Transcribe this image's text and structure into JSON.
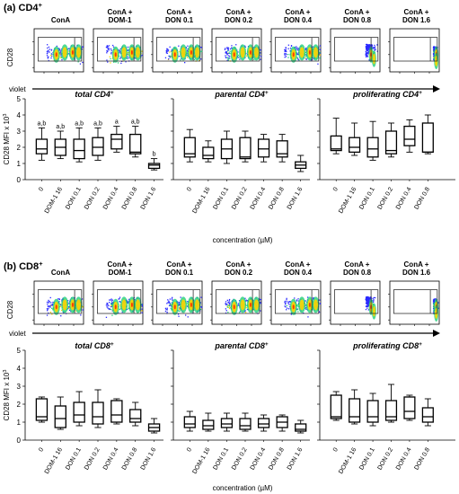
{
  "panels": [
    {
      "id": "a",
      "heading_prefix": "(a) CD4",
      "heading_sup": "+",
      "flow": {
        "y_label": "CD28",
        "x_label": "violet",
        "plots": [
          {
            "label": [
              "ConA"
            ],
            "events": "full"
          },
          {
            "label": [
              "ConA +",
              "DOM-1"
            ],
            "events": "full"
          },
          {
            "label": [
              "ConA +",
              "DON 0.1"
            ],
            "events": "full"
          },
          {
            "label": [
              "ConA +",
              "DON 0.2"
            ],
            "events": "full"
          },
          {
            "label": [
              "ConA +",
              "DON 0.4"
            ],
            "events": "full"
          },
          {
            "label": [
              "ConA +",
              "DON 0.8"
            ],
            "events": "right"
          },
          {
            "label": [
              "ConA +",
              "DON 1.6"
            ],
            "events": "edge"
          }
        ]
      },
      "box_charts": [
        {
          "title": "total CD4",
          "title_sup": "+",
          "type": "box",
          "categories": [
            "0",
            "DOM-1 16",
            "DON 0.1",
            "DON 0.2",
            "DON 0.4",
            "DON 0.8",
            "DON 1.6"
          ],
          "boxes": [
            {
              "min": 1.2,
              "q1": 1.6,
              "median": 1.9,
              "q3": 2.5,
              "max": 3.2,
              "sig": "a,b"
            },
            {
              "min": 1.3,
              "q1": 1.5,
              "median": 2.0,
              "q3": 2.5,
              "max": 3.0,
              "sig": "a,b"
            },
            {
              "min": 1.1,
              "q1": 1.3,
              "median": 1.8,
              "q3": 2.5,
              "max": 3.2,
              "sig": "a,b"
            },
            {
              "min": 1.2,
              "q1": 1.5,
              "median": 2.0,
              "q3": 2.6,
              "max": 3.2,
              "sig": "a,b"
            },
            {
              "min": 1.7,
              "q1": 1.9,
              "median": 2.5,
              "q3": 2.8,
              "max": 3.3,
              "sig": "a"
            },
            {
              "min": 1.4,
              "q1": 1.6,
              "median": 1.7,
              "q3": 2.8,
              "max": 3.3,
              "sig": "a,b"
            },
            {
              "min": 0.6,
              "q1": 0.7,
              "median": 0.9,
              "q3": 1.0,
              "max": 1.3,
              "sig": "b"
            }
          ]
        },
        {
          "title": "parental CD4",
          "title_sup": "+",
          "type": "box",
          "categories": [
            "0",
            "DOM-1 16",
            "DON 0.1",
            "DON 0.2",
            "DON 0.4",
            "DON 0.8",
            "DON 1.6"
          ],
          "boxes": [
            {
              "min": 1.1,
              "q1": 1.4,
              "median": 1.6,
              "q3": 2.6,
              "max": 3.1
            },
            {
              "min": 1.1,
              "q1": 1.3,
              "median": 1.5,
              "q3": 2.0,
              "max": 2.4
            },
            {
              "min": 1.0,
              "q1": 1.3,
              "median": 1.9,
              "q3": 2.5,
              "max": 3.0
            },
            {
              "min": 1.1,
              "q1": 1.3,
              "median": 1.4,
              "q3": 2.6,
              "max": 3.0
            },
            {
              "min": 1.1,
              "q1": 1.4,
              "median": 1.9,
              "q3": 2.5,
              "max": 2.8
            },
            {
              "min": 1.1,
              "q1": 1.4,
              "median": 1.6,
              "q3": 2.4,
              "max": 2.8
            },
            {
              "min": 0.5,
              "q1": 0.7,
              "median": 0.9,
              "q3": 1.1,
              "max": 1.5
            }
          ]
        },
        {
          "title": "proliferating CD4",
          "title_sup": "+",
          "type": "box",
          "categories": [
            "0",
            "DOM-1 16",
            "DON 0.1",
            "DON 0.2",
            "DON 0.4",
            "DON 0.8"
          ],
          "boxes": [
            {
              "min": 1.6,
              "q1": 1.8,
              "median": 1.9,
              "q3": 2.7,
              "max": 3.8
            },
            {
              "min": 1.5,
              "q1": 1.7,
              "median": 2.0,
              "q3": 2.6,
              "max": 3.5
            },
            {
              "min": 1.2,
              "q1": 1.4,
              "median": 1.9,
              "q3": 2.6,
              "max": 3.6
            },
            {
              "min": 1.4,
              "q1": 1.6,
              "median": 1.8,
              "q3": 3.0,
              "max": 3.5
            },
            {
              "min": 1.7,
              "q1": 2.1,
              "median": 2.5,
              "q3": 3.3,
              "max": 3.7
            },
            {
              "min": 1.6,
              "q1": 1.7,
              "median": 1.7,
              "q3": 3.5,
              "max": 4.0
            }
          ]
        }
      ]
    },
    {
      "id": "b",
      "heading_prefix": "(b) CD8",
      "heading_sup": "+",
      "flow": {
        "y_label": "CD28",
        "x_label": "violet",
        "plots": [
          {
            "label": [
              "ConA"
            ],
            "events": "full"
          },
          {
            "label": [
              "ConA +",
              "DOM-1"
            ],
            "events": "full"
          },
          {
            "label": [
              "ConA +",
              "DON 0.1"
            ],
            "events": "full"
          },
          {
            "label": [
              "ConA +",
              "DON 0.2"
            ],
            "events": "full"
          },
          {
            "label": [
              "ConA +",
              "DON 0.4"
            ],
            "events": "full"
          },
          {
            "label": [
              "ConA +",
              "DON 0.8"
            ],
            "events": "right"
          },
          {
            "label": [
              "ConA +",
              "DON 1.6"
            ],
            "events": "edge"
          }
        ]
      },
      "box_charts": [
        {
          "title": "total CD8",
          "title_sup": "+",
          "type": "box",
          "categories": [
            "0",
            "DOM-1 16",
            "DON 0.1",
            "DON 0.2",
            "DON 0.4",
            "DON 0.8",
            "DON 1.6"
          ],
          "boxes": [
            {
              "min": 1.0,
              "q1": 1.1,
              "median": 1.3,
              "q3": 2.3,
              "max": 2.4
            },
            {
              "min": 0.6,
              "q1": 0.7,
              "median": 1.2,
              "q3": 1.9,
              "max": 2.4
            },
            {
              "min": 0.8,
              "q1": 1.0,
              "median": 1.4,
              "q3": 2.1,
              "max": 2.7
            },
            {
              "min": 0.7,
              "q1": 0.9,
              "median": 1.3,
              "q3": 2.1,
              "max": 2.8
            },
            {
              "min": 0.9,
              "q1": 1.0,
              "median": 1.4,
              "q3": 2.2,
              "max": 2.3
            },
            {
              "min": 0.8,
              "q1": 1.0,
              "median": 1.2,
              "q3": 1.7,
              "max": 2.1
            },
            {
              "min": 0.4,
              "q1": 0.5,
              "median": 0.7,
              "q3": 0.9,
              "max": 1.2
            }
          ]
        },
        {
          "title": "parental CD8",
          "title_sup": "+",
          "type": "box",
          "categories": [
            "0",
            "DOM-1 16",
            "DON 0.1",
            "DON 0.2",
            "DON 0.4",
            "DON 0.8",
            "DON 1.6"
          ],
          "boxes": [
            {
              "min": 0.5,
              "q1": 0.7,
              "median": 0.9,
              "q3": 1.3,
              "max": 1.6
            },
            {
              "min": 0.5,
              "q1": 0.6,
              "median": 0.8,
              "q3": 1.1,
              "max": 1.5
            },
            {
              "min": 0.5,
              "q1": 0.7,
              "median": 0.9,
              "q3": 1.2,
              "max": 1.5
            },
            {
              "min": 0.5,
              "q1": 0.6,
              "median": 0.8,
              "q3": 1.2,
              "max": 1.5
            },
            {
              "min": 0.5,
              "q1": 0.7,
              "median": 0.9,
              "q3": 1.2,
              "max": 1.4
            },
            {
              "min": 0.5,
              "q1": 0.7,
              "median": 1.0,
              "q3": 1.3,
              "max": 1.4
            },
            {
              "min": 0.4,
              "q1": 0.5,
              "median": 0.6,
              "q3": 0.9,
              "max": 1.1
            }
          ]
        },
        {
          "title": "proliferating CD8",
          "title_sup": "+",
          "type": "box",
          "categories": [
            "0",
            "DOM-1 16",
            "DON 0.1",
            "DON 0.2",
            "DON 0.4",
            "DON 0.8"
          ],
          "boxes": [
            {
              "min": 1.1,
              "q1": 1.2,
              "median": 1.3,
              "q3": 2.5,
              "max": 2.7
            },
            {
              "min": 0.9,
              "q1": 1.0,
              "median": 1.3,
              "q3": 2.3,
              "max": 2.8
            },
            {
              "min": 0.8,
              "q1": 1.0,
              "median": 1.3,
              "q3": 2.2,
              "max": 2.6
            },
            {
              "min": 1.0,
              "q1": 1.1,
              "median": 1.3,
              "q3": 2.2,
              "max": 3.1
            },
            {
              "min": 1.1,
              "q1": 1.2,
              "median": 1.6,
              "q3": 2.4,
              "max": 2.5
            },
            {
              "min": 0.8,
              "q1": 1.0,
              "median": 1.3,
              "q3": 1.8,
              "max": 2.3
            }
          ]
        }
      ]
    }
  ],
  "y_axis": {
    "label_prefix": "CD28 MFI x 10",
    "label_exp": "3",
    "ticks": [
      "0",
      "1",
      "2",
      "3",
      "4",
      "5"
    ],
    "ylim": [
      0,
      5
    ]
  },
  "x_axis_label": "concentration (µM)",
  "colors": {
    "ink": "#000000",
    "gate": "#333333",
    "density_low": "#2a2aff",
    "density_mid": "#22d07a",
    "density_high": "#ffd400",
    "density_peak": "#ff2a00"
  }
}
